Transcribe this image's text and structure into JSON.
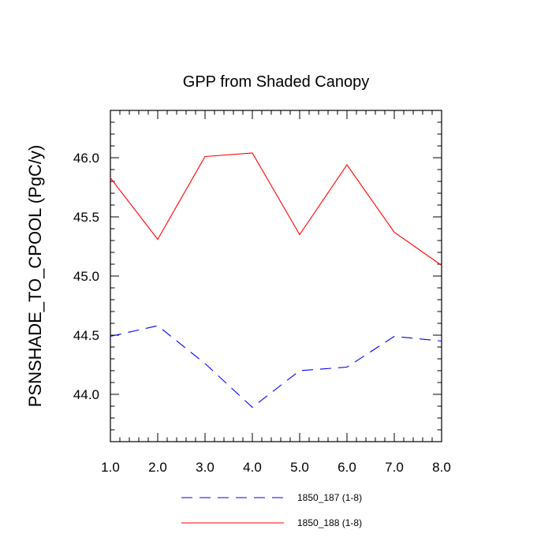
{
  "chart_data": {
    "type": "line",
    "title": "GPP from Shaded Canopy",
    "xlabel": "",
    "ylabel": "PSNSHADE_TO_CPOOL  (PgC/y)",
    "xlim": [
      1.0,
      8.0
    ],
    "ylim": [
      43.6,
      46.4
    ],
    "x": [
      1,
      2,
      3,
      4,
      5,
      6,
      7,
      8
    ],
    "x_tick_labels": [
      "1.0",
      "2.0",
      "3.0",
      "4.0",
      "5.0",
      "6.0",
      "7.0",
      "8.0"
    ],
    "y_tick_values": [
      44.0,
      44.5,
      45.0,
      45.5,
      46.0
    ],
    "y_tick_labels": [
      "44.0",
      "44.5",
      "45.0",
      "45.5",
      "46.0"
    ],
    "grid": false,
    "legend_position": "bottom",
    "series": [
      {
        "name": "1850_187 (1-8)",
        "color": "#0000ff",
        "style": "dashed",
        "values": [
          44.49,
          44.58,
          44.26,
          43.89,
          44.2,
          44.23,
          44.49,
          44.45
        ]
      },
      {
        "name": "1850_188 (1-8)",
        "color": "#ff0000",
        "style": "solid",
        "values": [
          45.83,
          45.31,
          46.01,
          46.04,
          45.35,
          45.94,
          45.37,
          45.09
        ]
      }
    ]
  }
}
